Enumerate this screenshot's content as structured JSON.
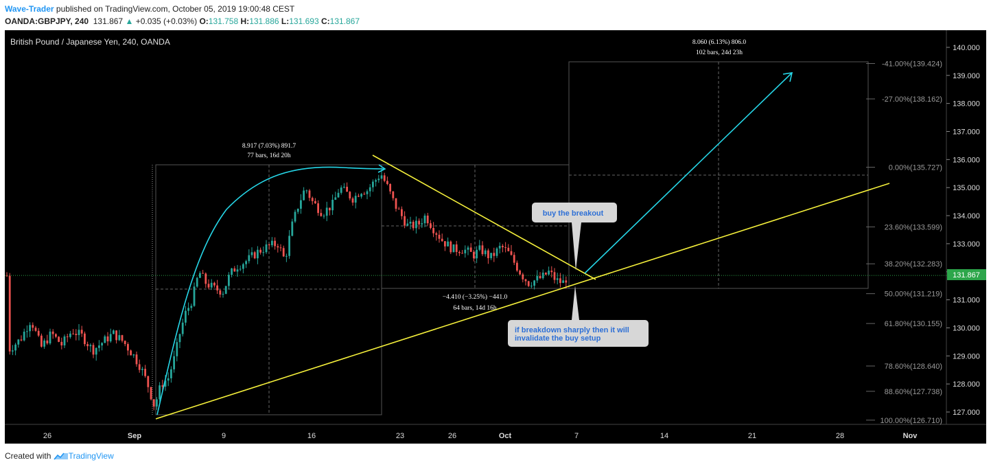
{
  "header": {
    "author": "Wave-Trader",
    "published_text": " published on TradingView.com, October 05, 2019 19:00:48 CEST",
    "symbol": "OANDA:GBPJPY, 240",
    "last": "131.867",
    "change": "+0.035 (+0.03%)",
    "o_label": "O:",
    "o": "131.758",
    "h_label": "H:",
    "h": "131.886",
    "l_label": "L:",
    "l": "131.693",
    "c_label": "C:",
    "c": "131.867"
  },
  "footer": {
    "created_with": "Created with",
    "brand": "TradingView"
  },
  "colors": {
    "background": "#000000",
    "up": "#26a69a",
    "down": "#ef5350",
    "cyan": "#26d7e8",
    "yellow": "#f5f03b",
    "callout": "#d7d7d7",
    "callout_text": "#2d6fd6"
  },
  "chart_data": {
    "type": "candlestick",
    "title": "British Pound / Japanese Yen, 240, OANDA",
    "ylim": [
      126.4,
      140.4
    ],
    "y_ticks": [
      "140.000",
      "139.000",
      "138.000",
      "137.000",
      "136.000",
      "135.000",
      "134.000",
      "133.000",
      "132.000",
      "131.000",
      "130.000",
      "129.000",
      "128.000",
      "127.000"
    ],
    "x_ticks": [
      "26",
      "Sep",
      "9",
      "16",
      "23",
      "26",
      "Oct",
      "7",
      "14",
      "21",
      "28",
      "Nov"
    ],
    "last_price": "131.867",
    "close_path": [
      {
        "x": 12,
        "y": 129.2
      },
      {
        "x": 30,
        "y": 129.6
      },
      {
        "x": 45,
        "y": 130.3
      },
      {
        "x": 60,
        "y": 129.3
      },
      {
        "x": 75,
        "y": 129.8
      },
      {
        "x": 90,
        "y": 129.4
      },
      {
        "x": 105,
        "y": 129.9
      },
      {
        "x": 120,
        "y": 129.7
      },
      {
        "x": 135,
        "y": 129.2
      },
      {
        "x": 150,
        "y": 129.5
      },
      {
        "x": 165,
        "y": 129.8
      },
      {
        "x": 180,
        "y": 129.5
      },
      {
        "x": 195,
        "y": 129.0
      },
      {
        "x": 205,
        "y": 128.6
      },
      {
        "x": 215,
        "y": 128.0
      },
      {
        "x": 225,
        "y": 127.2
      },
      {
        "x": 235,
        "y": 128.0
      },
      {
        "x": 245,
        "y": 128.2
      },
      {
        "x": 255,
        "y": 129.0
      },
      {
        "x": 262,
        "y": 129.8
      },
      {
        "x": 270,
        "y": 130.5
      },
      {
        "x": 280,
        "y": 131.0
      },
      {
        "x": 290,
        "y": 132.0
      },
      {
        "x": 300,
        "y": 131.6
      },
      {
        "x": 312,
        "y": 131.4
      },
      {
        "x": 325,
        "y": 131.3
      },
      {
        "x": 335,
        "y": 131.9
      },
      {
        "x": 345,
        "y": 132.2
      },
      {
        "x": 360,
        "y": 132.4
      },
      {
        "x": 375,
        "y": 132.7
      },
      {
        "x": 390,
        "y": 132.9
      },
      {
        "x": 405,
        "y": 133.0
      },
      {
        "x": 415,
        "y": 132.4
      },
      {
        "x": 425,
        "y": 133.6
      },
      {
        "x": 435,
        "y": 134.4
      },
      {
        "x": 445,
        "y": 135.0
      },
      {
        "x": 455,
        "y": 134.5
      },
      {
        "x": 470,
        "y": 134.1
      },
      {
        "x": 485,
        "y": 134.4
      },
      {
        "x": 495,
        "y": 135.0
      },
      {
        "x": 505,
        "y": 134.8
      },
      {
        "x": 515,
        "y": 134.6
      },
      {
        "x": 525,
        "y": 134.9
      },
      {
        "x": 535,
        "y": 134.9
      },
      {
        "x": 545,
        "y": 135.2
      },
      {
        "x": 555,
        "y": 135.5
      },
      {
        "x": 565,
        "y": 135.0
      },
      {
        "x": 575,
        "y": 134.4
      },
      {
        "x": 585,
        "y": 134.0
      },
      {
        "x": 595,
        "y": 133.6
      },
      {
        "x": 610,
        "y": 133.7
      },
      {
        "x": 620,
        "y": 134.0
      },
      {
        "x": 630,
        "y": 133.6
      },
      {
        "x": 645,
        "y": 133.1
      },
      {
        "x": 660,
        "y": 132.8
      },
      {
        "x": 675,
        "y": 132.8
      },
      {
        "x": 690,
        "y": 132.6
      },
      {
        "x": 700,
        "y": 132.8
      },
      {
        "x": 715,
        "y": 132.5
      },
      {
        "x": 730,
        "y": 132.9
      },
      {
        "x": 740,
        "y": 132.7
      },
      {
        "x": 750,
        "y": 132.3
      },
      {
        "x": 760,
        "y": 131.9
      },
      {
        "x": 770,
        "y": 131.6
      },
      {
        "x": 780,
        "y": 131.7
      },
      {
        "x": 790,
        "y": 131.8
      },
      {
        "x": 800,
        "y": 132.0
      },
      {
        "x": 810,
        "y": 131.7
      },
      {
        "x": 820,
        "y": 131.6
      },
      {
        "x": 828,
        "y": 131.86
      }
    ],
    "fib_levels": [
      {
        "label": "-41.00%(139.424)",
        "price": 139.424
      },
      {
        "label": "-27.00%(138.162)",
        "price": 138.162
      },
      {
        "label": "0.00%(135.727)",
        "price": 135.727
      },
      {
        "label": "23.60%(133.599)",
        "price": 133.599
      },
      {
        "label": "38.20%(132.283)",
        "price": 132.283
      },
      {
        "label": "50.00%(131.219)",
        "price": 131.219
      },
      {
        "label": "61.80%(130.155)",
        "price": 130.155
      },
      {
        "label": "78.60%(128.640)",
        "price": 128.64
      },
      {
        "label": "88.60%(127.738)",
        "price": 127.738
      },
      {
        "label": "100.00%(126.710)",
        "price": 126.71
      }
    ],
    "measurements": [
      {
        "line1": "8.917 (7.03%) 891.7",
        "line2": "77 bars, 16d 20h"
      },
      {
        "line1": "−4.410 (−3.25%) −441.0",
        "line2": "64 bars, 14d 16h"
      },
      {
        "line1": "8.060 (6.13%) 806.0",
        "line2": "102 bars, 24d 23h"
      }
    ],
    "annotations": {
      "buy": "buy the breakout",
      "invalid_line1": "if breakdown sharply then it will",
      "invalid_line2": "invalidate the buy setup"
    }
  }
}
